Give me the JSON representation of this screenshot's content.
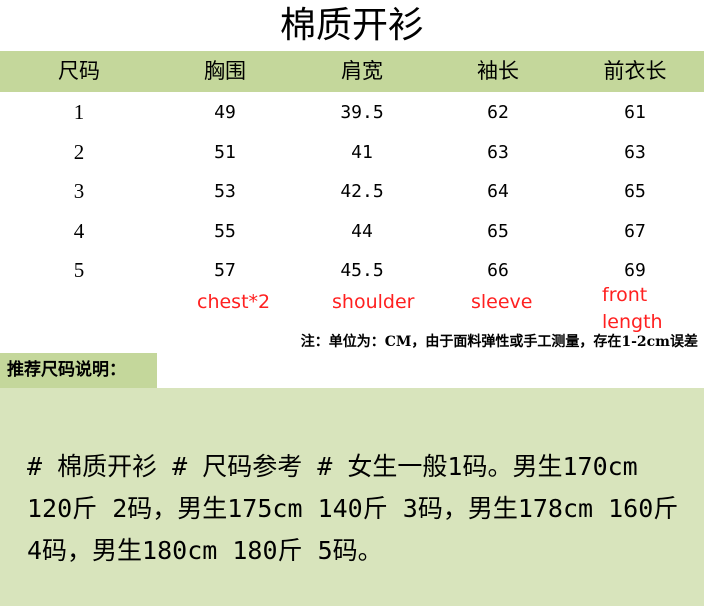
{
  "title": "棉质开衫",
  "table": {
    "headers": [
      "尺码",
      "胸围",
      "肩宽",
      "袖长",
      "前衣长"
    ],
    "rows": [
      [
        "1",
        "49",
        "39.5",
        "62",
        "61"
      ],
      [
        "2",
        "51",
        "41",
        "63",
        "63"
      ],
      [
        "3",
        "53",
        "42.5",
        "64",
        "65"
      ],
      [
        "4",
        "55",
        "44",
        "65",
        "67"
      ],
      [
        "5",
        "57",
        "45.5",
        "66",
        "69"
      ]
    ],
    "annotations": [
      "chest*2",
      "shoulder",
      "sleeve",
      "front",
      "length"
    ],
    "header_color": "#c4d79b",
    "annotation_color": "#ff2020"
  },
  "note": "注：单位为：CM，由于面料弹性或手工测量，存在1-2cm误差",
  "recommend": {
    "label": "推荐尺码说明：",
    "text": "# 棉质开衫 # 尺码参考 # 女生一般1码。男生170cm 120斤 2码，男生175cm 140斤 3码，男生178cm 160斤 4码，男生180cm 180斤 5码。",
    "box_color": "#d8e4bc"
  }
}
